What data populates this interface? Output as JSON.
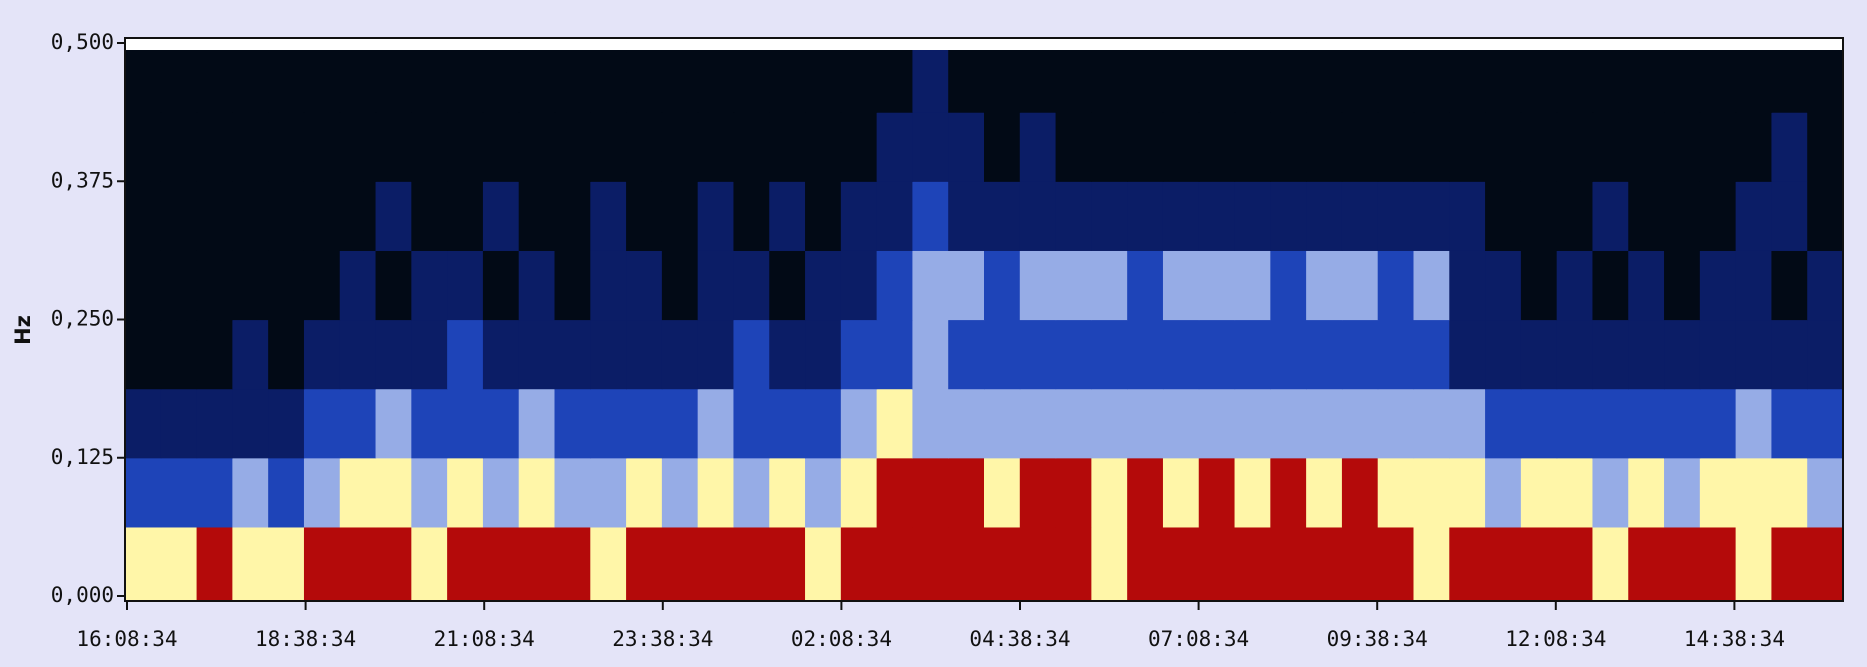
{
  "chart_data": {
    "type": "heatmap",
    "ylabel": "Hz",
    "ylim": [
      0,
      0.5
    ],
    "yticks": [
      {
        "value": 0,
        "label": "0,000"
      },
      {
        "value": 0.125,
        "label": "0,125"
      },
      {
        "value": 0.25,
        "label": "0,250"
      },
      {
        "value": 0.375,
        "label": "0,375"
      },
      {
        "value": 0.5,
        "label": "0,500"
      }
    ],
    "xticks": [
      "16:08:34",
      "18:38:34",
      "21:08:34",
      "23:38:34",
      "02:08:34",
      "04:38:34",
      "07:08:34",
      "09:38:34",
      "12:08:34",
      "14:38:34"
    ],
    "colorscale": [
      "#020a16",
      "#0b1d66",
      "#1e44b8",
      "#96ace6",
      "#fff6a8",
      "#b40a0a"
    ],
    "z": [
      [
        4,
        4,
        5,
        4,
        4,
        5,
        5,
        5,
        4,
        5,
        5,
        5,
        5,
        4,
        5,
        5,
        5,
        5,
        5,
        4,
        5,
        5,
        5,
        5,
        5,
        5,
        5,
        4,
        5,
        5,
        5,
        5,
        5,
        5,
        5,
        5,
        4,
        5,
        5,
        5,
        5,
        4,
        5,
        5,
        5,
        4,
        5,
        5
      ],
      [
        2,
        2,
        2,
        3,
        2,
        3,
        4,
        4,
        3,
        4,
        3,
        4,
        3,
        3,
        4,
        3,
        4,
        3,
        4,
        3,
        4,
        5,
        5,
        5,
        4,
        5,
        5,
        4,
        5,
        4,
        5,
        4,
        5,
        4,
        5,
        4,
        4,
        4,
        3,
        4,
        4,
        3,
        4,
        3,
        4,
        4,
        4,
        3
      ],
      [
        1,
        1,
        1,
        1,
        1,
        2,
        2,
        3,
        2,
        2,
        2,
        3,
        2,
        2,
        2,
        2,
        3,
        2,
        2,
        2,
        3,
        4,
        3,
        3,
        3,
        3,
        3,
        3,
        3,
        3,
        3,
        3,
        3,
        3,
        3,
        3,
        3,
        3,
        2,
        2,
        2,
        2,
        2,
        2,
        2,
        3,
        2,
        2
      ],
      [
        0,
        0,
        0,
        1,
        0,
        1,
        1,
        1,
        1,
        2,
        1,
        1,
        1,
        1,
        1,
        1,
        1,
        2,
        1,
        1,
        2,
        2,
        3,
        2,
        2,
        2,
        2,
        2,
        2,
        2,
        2,
        2,
        2,
        2,
        2,
        2,
        2,
        1,
        1,
        1,
        1,
        1,
        1,
        1,
        1,
        1,
        1,
        1
      ],
      [
        0,
        0,
        0,
        0,
        0,
        0,
        1,
        0,
        1,
        1,
        0,
        1,
        0,
        1,
        1,
        0,
        1,
        1,
        0,
        1,
        1,
        2,
        3,
        3,
        2,
        3,
        3,
        3,
        2,
        3,
        3,
        3,
        2,
        3,
        3,
        2,
        3,
        1,
        1,
        0,
        1,
        0,
        1,
        0,
        1,
        1,
        0,
        1
      ],
      [
        0,
        0,
        0,
        0,
        0,
        0,
        0,
        1,
        0,
        0,
        1,
        0,
        0,
        1,
        0,
        0,
        1,
        0,
        1,
        0,
        1,
        1,
        2,
        1,
        1,
        1,
        1,
        1,
        1,
        1,
        1,
        1,
        1,
        1,
        1,
        1,
        1,
        1,
        0,
        0,
        0,
        1,
        0,
        0,
        0,
        1,
        1,
        0
      ],
      [
        0,
        0,
        0,
        0,
        0,
        0,
        0,
        0,
        0,
        0,
        0,
        0,
        0,
        0,
        0,
        0,
        0,
        0,
        0,
        0,
        0,
        1,
        1,
        1,
        0,
        1,
        0,
        0,
        0,
        0,
        0,
        0,
        0,
        0,
        0,
        0,
        0,
        0,
        0,
        0,
        0,
        0,
        0,
        0,
        0,
        0,
        1,
        0
      ],
      [
        0,
        0,
        0,
        0,
        0,
        0,
        0,
        0,
        0,
        0,
        0,
        0,
        0,
        0,
        0,
        0,
        0,
        0,
        0,
        0,
        0,
        0,
        1,
        0,
        0,
        0,
        0,
        0,
        0,
        0,
        0,
        0,
        0,
        0,
        0,
        0,
        0,
        0,
        0,
        0,
        0,
        0,
        0,
        0,
        0,
        0,
        0,
        0
      ]
    ]
  }
}
